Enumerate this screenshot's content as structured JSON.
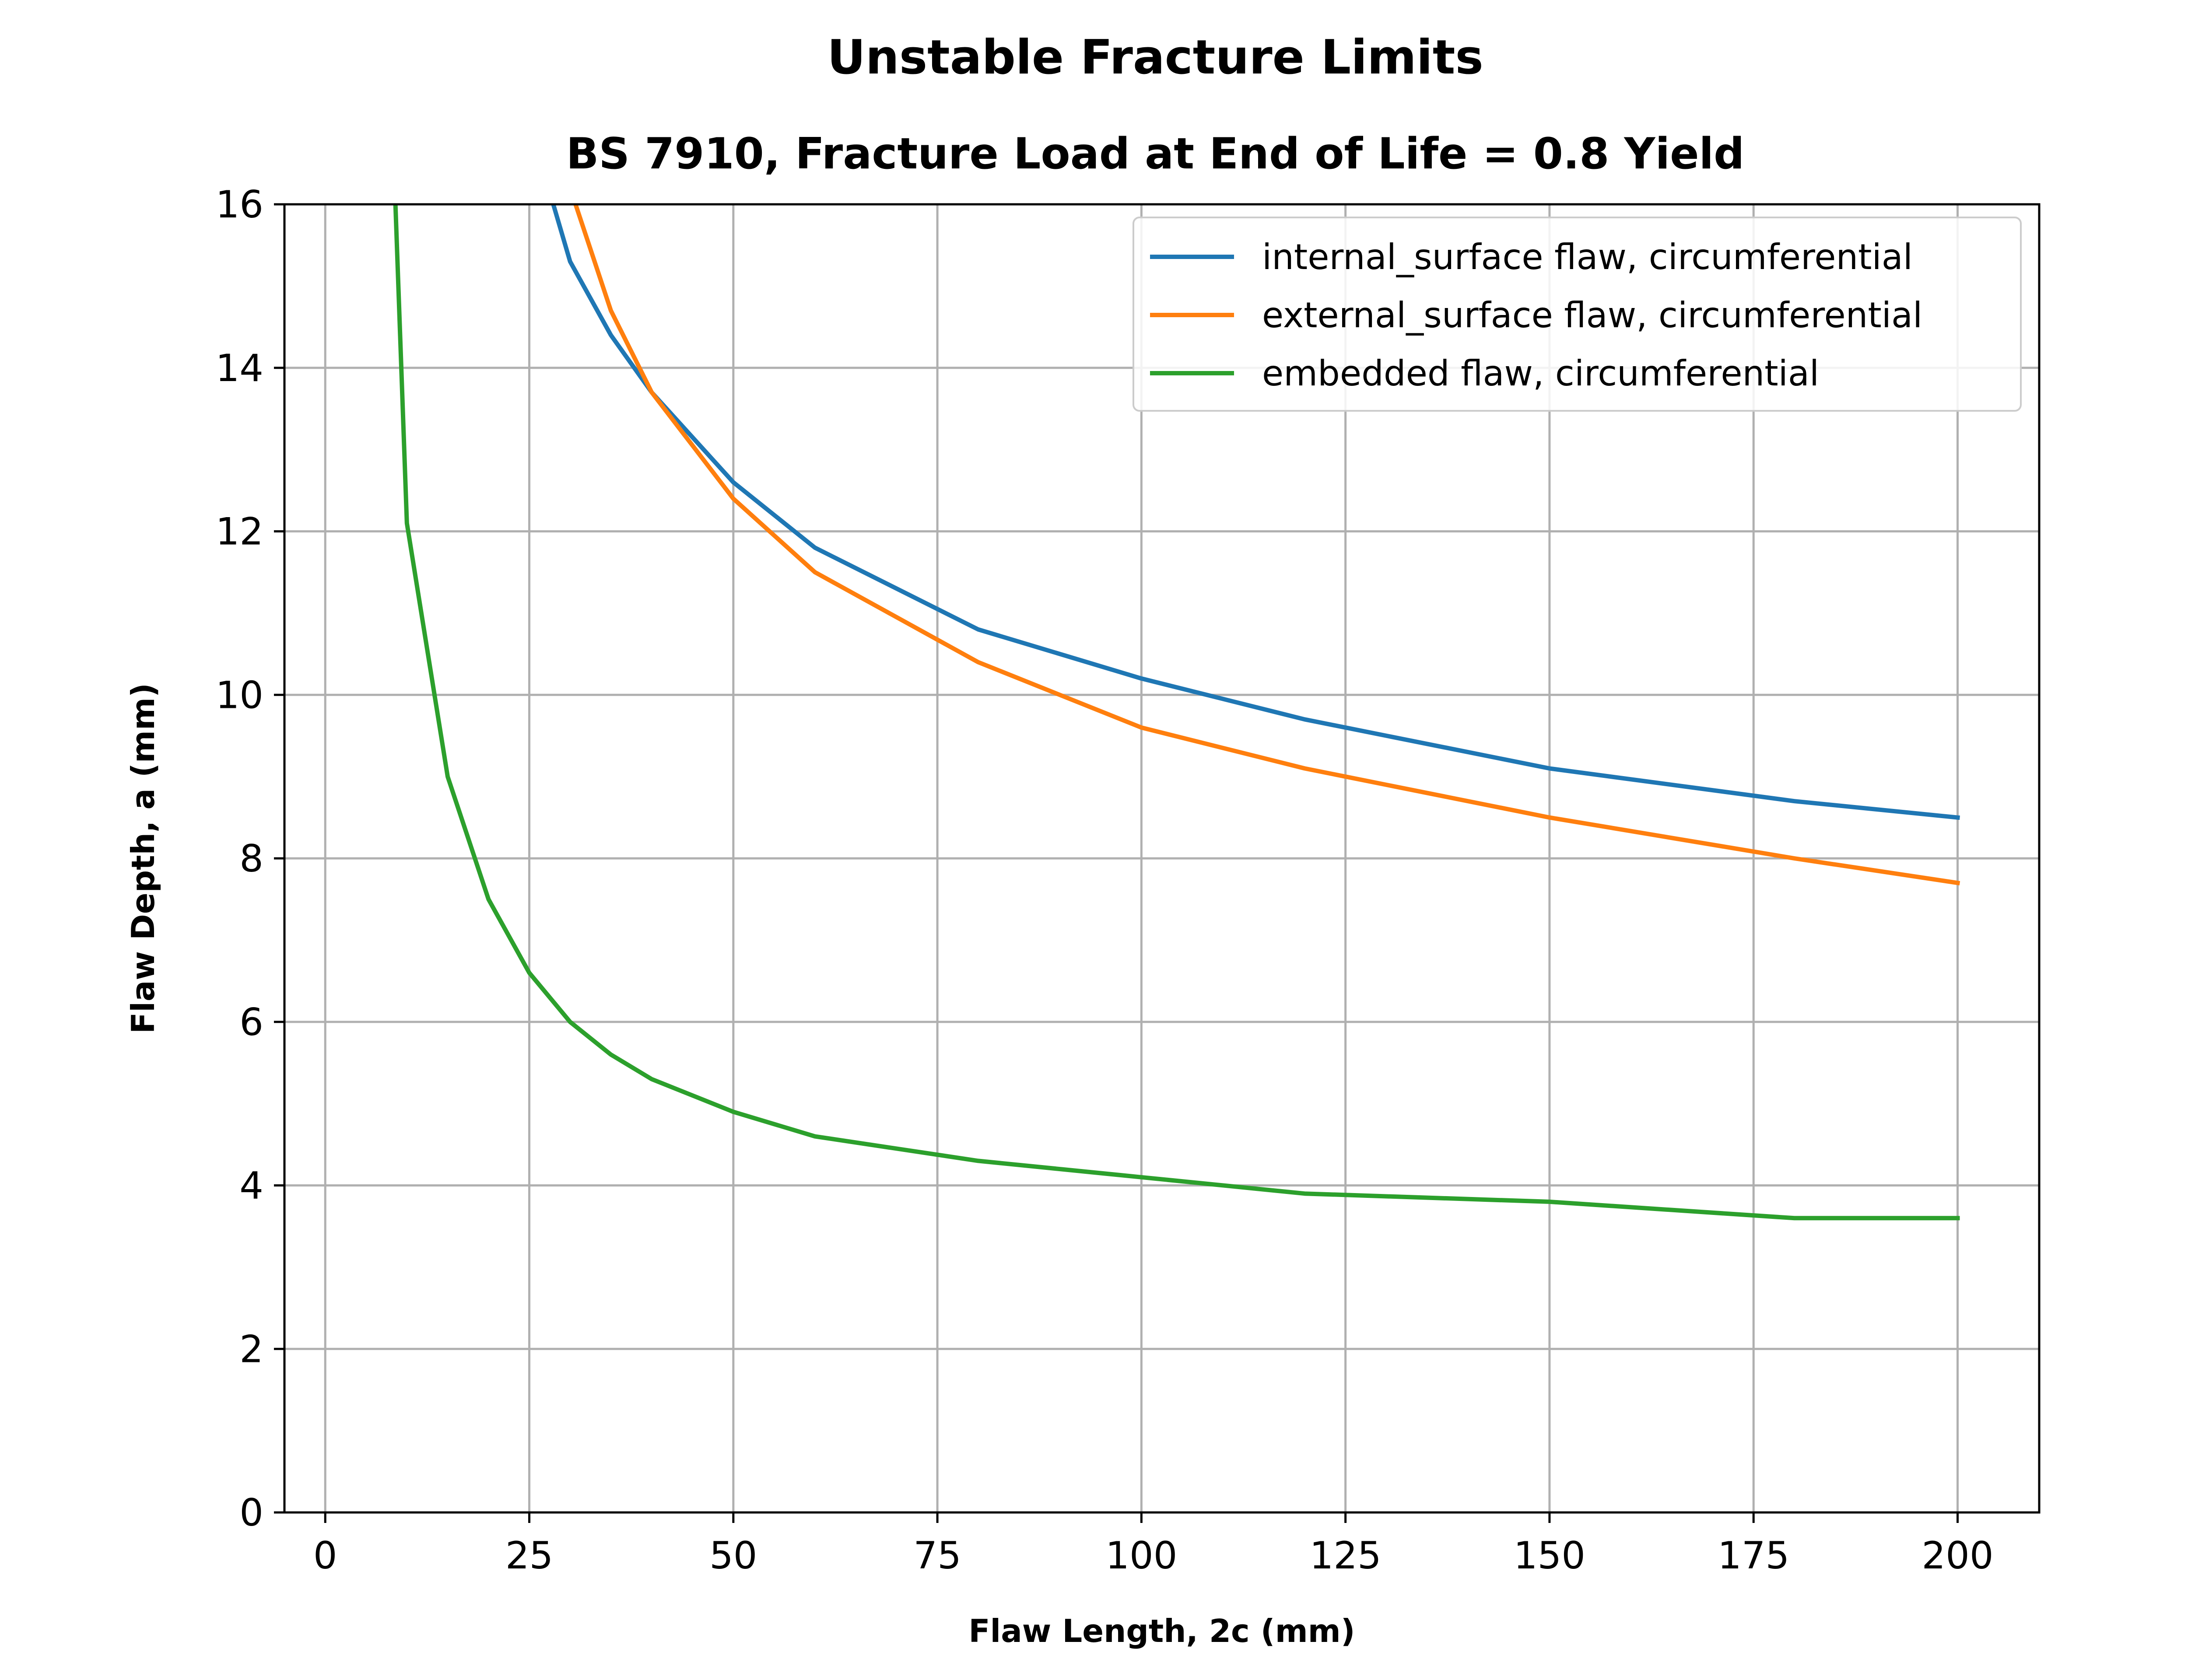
{
  "chart_data": {
    "type": "line",
    "title": "Unstable Fracture Limits",
    "subtitle": "BS 7910, Fracture Load at End of Life = 0.8 Yield",
    "xlabel": "Flaw Length, 2c (mm)",
    "ylabel": "Flaw Depth, a (mm)",
    "xlim": [
      -5,
      210
    ],
    "ylim": [
      0,
      16
    ],
    "x_ticks": [
      "0",
      "25",
      "50",
      "75",
      "100",
      "125",
      "150",
      "175",
      "200"
    ],
    "y_ticks": [
      "0",
      "2",
      "4",
      "6",
      "8",
      "10",
      "12",
      "14",
      "16"
    ],
    "grid": true,
    "legend_position": "top-right",
    "series": [
      {
        "name": "internal_surface flaw, circumferential",
        "color": "#1f77b4",
        "x": [
          25,
          30,
          35,
          40,
          50,
          60,
          80,
          100,
          120,
          150,
          180,
          200
        ],
        "y": [
          17.0,
          15.3,
          14.4,
          13.7,
          12.6,
          11.8,
          10.8,
          10.2,
          9.7,
          9.1,
          8.7,
          8.5
        ]
      },
      {
        "name": "external_surface flaw, circumferential",
        "color": "#ff7f0e",
        "x": [
          30,
          35,
          40,
          50,
          60,
          80,
          100,
          120,
          150,
          180,
          200
        ],
        "y": [
          16.2,
          14.7,
          13.7,
          12.4,
          11.5,
          10.4,
          9.6,
          9.1,
          8.5,
          8.0,
          7.7
        ]
      },
      {
        "name": "embedded flaw, circumferential",
        "color": "#2ca02c",
        "x": [
          5,
          10,
          15,
          20,
          25,
          30,
          35,
          40,
          50,
          60,
          80,
          100,
          120,
          150,
          180,
          200
        ],
        "y": [
          26.0,
          12.1,
          9.0,
          7.5,
          6.6,
          6.0,
          5.6,
          5.3,
          4.9,
          4.6,
          4.3,
          4.1,
          3.9,
          3.8,
          3.6,
          3.6
        ]
      }
    ]
  }
}
